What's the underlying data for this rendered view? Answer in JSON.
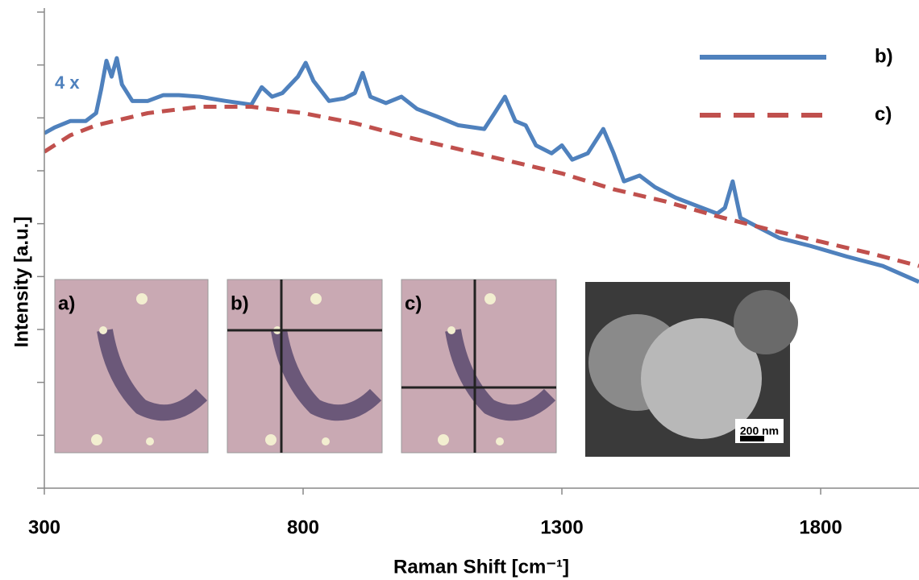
{
  "chart_data": {
    "type": "line",
    "xlabel": "Raman Shift [cm⁻¹]",
    "ylabel": "Intensity [a.u.]",
    "annotation": "4 x",
    "xlim": [
      300,
      1990
    ],
    "xticks": [
      300,
      800,
      1300,
      1800
    ],
    "ylim": [
      0,
      9
    ],
    "yticks": [
      0,
      1,
      2,
      3,
      4,
      5,
      6,
      7,
      8,
      9
    ],
    "series": [
      {
        "name": "b)",
        "color": "#4f81bd",
        "style": "solid",
        "x": [
          300,
          320,
          350,
          380,
          400,
          410,
          420,
          430,
          440,
          450,
          470,
          500,
          530,
          560,
          600,
          650,
          700,
          720,
          740,
          760,
          790,
          805,
          820,
          850,
          880,
          900,
          915,
          930,
          960,
          990,
          1020,
          1060,
          1100,
          1150,
          1170,
          1190,
          1210,
          1230,
          1250,
          1280,
          1300,
          1320,
          1350,
          1380,
          1400,
          1420,
          1450,
          1480,
          1520,
          1560,
          1600,
          1615,
          1630,
          1645,
          1680,
          1720,
          1780,
          1850,
          1920,
          1990
        ],
        "values": [
          6.71,
          6.82,
          6.94,
          6.94,
          7.09,
          7.55,
          8.08,
          7.78,
          8.13,
          7.63,
          7.32,
          7.32,
          7.43,
          7.43,
          7.4,
          7.32,
          7.25,
          7.58,
          7.4,
          7.47,
          7.78,
          8.04,
          7.7,
          7.32,
          7.37,
          7.47,
          7.85,
          7.4,
          7.28,
          7.4,
          7.17,
          7.02,
          6.86,
          6.79,
          7.09,
          7.4,
          6.94,
          6.86,
          6.48,
          6.33,
          6.48,
          6.21,
          6.33,
          6.79,
          6.33,
          5.8,
          5.91,
          5.69,
          5.49,
          5.34,
          5.19,
          5.3,
          5.8,
          5.11,
          4.93,
          4.73,
          4.58,
          4.38,
          4.2,
          3.9
        ]
      },
      {
        "name": "c)",
        "color": "#c0504d",
        "style": "dashed",
        "x": [
          300,
          350,
          400,
          500,
          600,
          700,
          800,
          900,
          1000,
          1100,
          1200,
          1300,
          1400,
          1500,
          1600,
          1700,
          1800,
          1900,
          1990
        ],
        "values": [
          6.36,
          6.67,
          6.86,
          7.09,
          7.21,
          7.21,
          7.09,
          6.9,
          6.64,
          6.41,
          6.18,
          5.95,
          5.65,
          5.42,
          5.14,
          4.89,
          4.66,
          4.43,
          4.2
        ]
      }
    ],
    "insets": [
      "a)",
      "b)",
      "c)"
    ],
    "scale_bar_label": "200 nm"
  }
}
